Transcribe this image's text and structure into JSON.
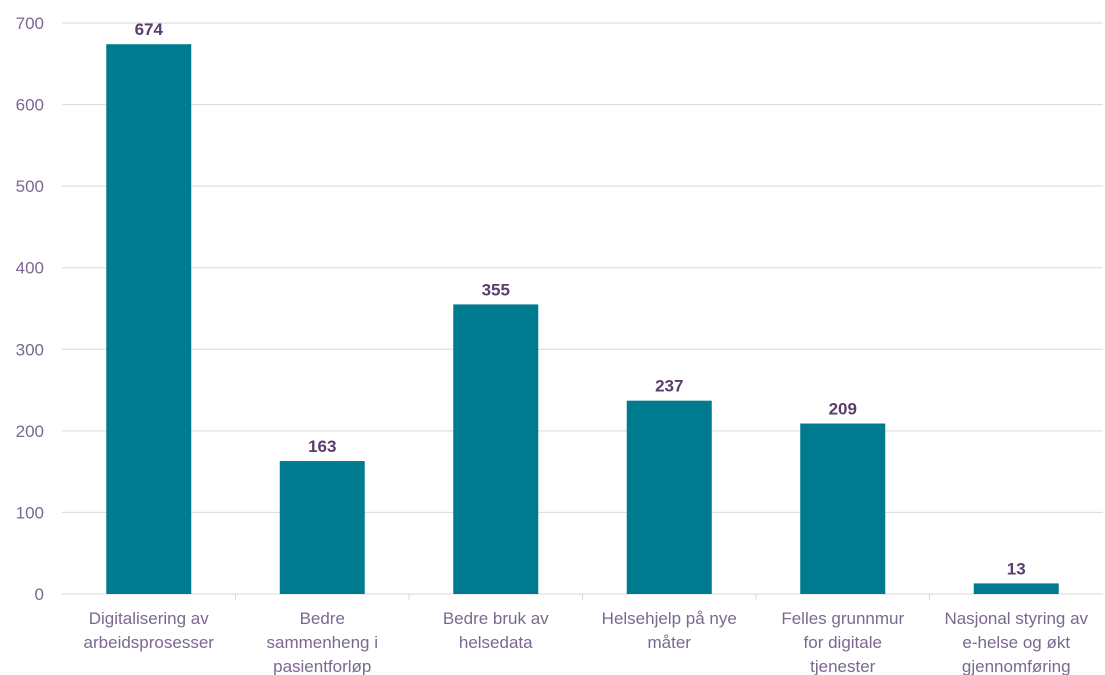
{
  "chart_data": {
    "type": "bar",
    "categories": [
      [
        "Digitalisering av",
        "arbeidsprosesser"
      ],
      [
        "Bedre",
        "sammenheng i",
        "pasientforløp"
      ],
      [
        "Bedre bruk av",
        "helsedata"
      ],
      [
        "Helsehjelp på nye",
        "måter"
      ],
      [
        "Felles grunnmur",
        "for digitale",
        "tjenester"
      ],
      [
        "Nasjonal styring av",
        "e-helse og økt",
        "gjennomføring"
      ]
    ],
    "values": [
      674,
      163,
      355,
      237,
      209,
      13
    ],
    "data_labels": [
      "674",
      "163",
      "355",
      "237",
      "209",
      "13"
    ],
    "title": "",
    "xlabel": "",
    "ylabel": "",
    "ylim": [
      0,
      700
    ],
    "yticks": [
      0,
      100,
      200,
      300,
      400,
      500,
      600,
      700
    ],
    "grid": true,
    "legend": "none",
    "colors": {
      "bar": "#007a8f",
      "data_label": "#5a3e6e",
      "tick_label": "#7a6890",
      "gridline": "#d9d9d9",
      "axis_line": "#d9d9d9"
    }
  }
}
